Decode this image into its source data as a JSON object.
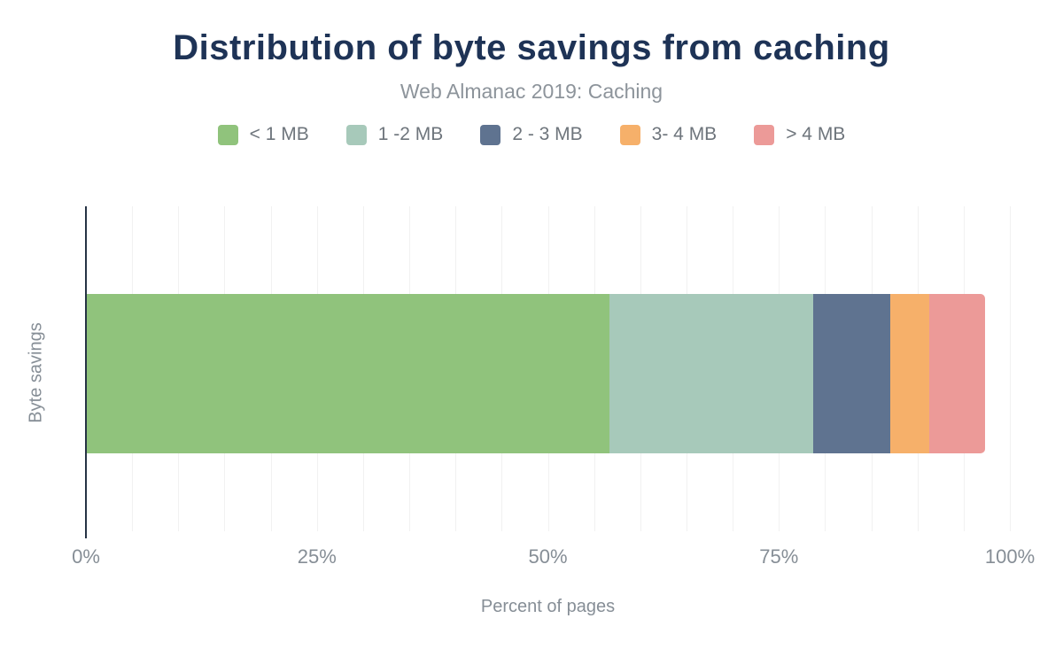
{
  "chart": {
    "title": "Distribution of byte savings from caching",
    "subtitle": "Web Almanac 2019: Caching",
    "xlabel": "Percent of pages",
    "ylabel": "Byte savings"
  },
  "colors": {
    "background": "#ffffff",
    "title": "#1e3356",
    "subtitle": "#8d949b",
    "legend_text": "#6e757c",
    "tick_text": "#868e96",
    "axis_line": "#263345",
    "gridline": "#f1f1f1"
  },
  "chart_data": {
    "type": "bar",
    "orientation": "horizontal",
    "stacked": true,
    "title": "Distribution of byte savings from caching",
    "subtitle": "Web Almanac 2019: Caching",
    "xlabel": "Percent of pages",
    "ylabel": "Byte savings",
    "categories": [
      "Byte savings"
    ],
    "series": [
      {
        "name": "< 1 MB",
        "value": 56.7,
        "color": "#90c37c"
      },
      {
        "name": "1 -2 MB",
        "value": 22.0,
        "color": "#a7c9ba"
      },
      {
        "name": "2 - 3 MB",
        "value": 8.4,
        "color": "#5f7390"
      },
      {
        "name": "3- 4 MB",
        "value": 4.2,
        "color": "#f6b06a"
      },
      {
        "name": "> 4 MB",
        "value": 6.0,
        "color": "#ec9a98"
      }
    ],
    "total_shown": 97.3,
    "xlim": [
      0,
      100
    ],
    "x_ticks": [
      "0%",
      "25%",
      "50%",
      "75%",
      "100%"
    ],
    "x_tick_values": [
      0,
      25,
      50,
      75,
      100
    ],
    "gridline_step": 5,
    "grid": true,
    "legend_position": "top"
  }
}
